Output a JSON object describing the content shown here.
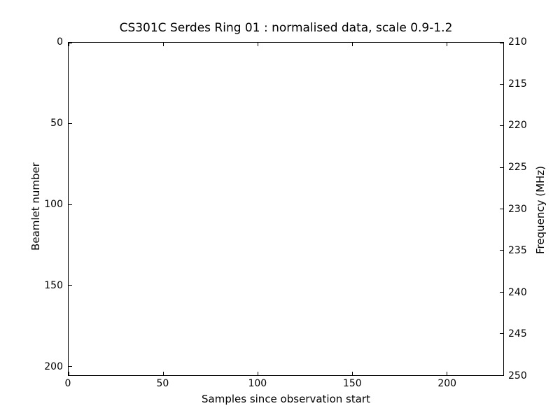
{
  "colors": {
    "background": "#ffffff",
    "axes": "#000000",
    "text": "#000000"
  },
  "chart_data": {
    "type": "heatmap",
    "title": "CS301C Serdes Ring 01 : normalised data, scale 0.9-1.2",
    "xlabel": "Samples since observation start",
    "ylabel_left": "Beamlet number",
    "ylabel_right": "Frequency (MHz)",
    "xlim": [
      0,
      230
    ],
    "ylim_left": [
      0,
      205.6
    ],
    "ylim_right": [
      210,
      250
    ],
    "x_ticks": [
      0,
      50,
      100,
      150,
      200
    ],
    "y_ticks_left": [
      0,
      50,
      100,
      150,
      200
    ],
    "y_ticks_right": [
      210,
      215,
      220,
      225,
      230,
      235,
      240,
      245,
      250
    ],
    "y_left_increases_downward": true,
    "grid": false,
    "legend": null,
    "values": [],
    "plot_area_content": "blank"
  }
}
